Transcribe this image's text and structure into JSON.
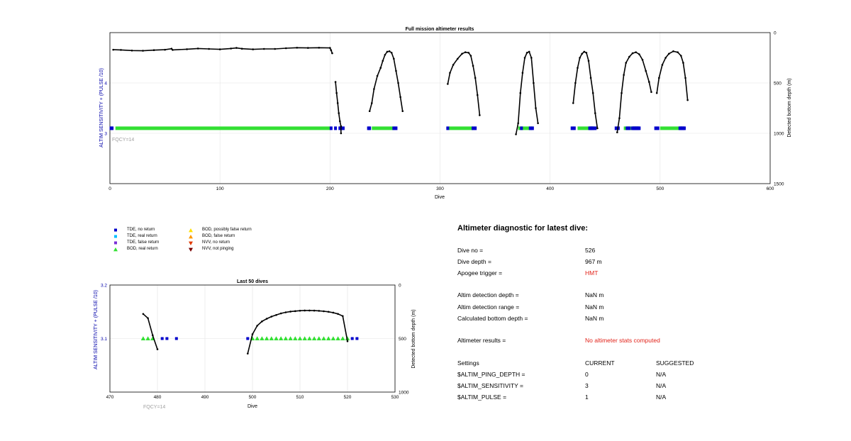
{
  "charts_meta": {
    "colors": {
      "line": "#000000",
      "tde_no_return": "#0000cc",
      "tde_real_return": "#00c0ff",
      "tde_false_return": "#7a2fd6",
      "bod_real_return": "#33e033",
      "bod_possibly_false": "#ffe000",
      "bod_false_return": "#ff9900",
      "nvv_no_return": "#e23a00",
      "nvv_not_pinging": "#7a0000",
      "left_axis": "#0000aa",
      "fqcy": "#a0a0a0"
    }
  },
  "chart_data": [
    {
      "type": "line",
      "title": "Full mission altimeter results",
      "xlabel": "Dive",
      "ylabel_left": "ALTIM SENSITIVITY + (PULSE /10)",
      "ylabel_right": "Detected bottom depth (m)",
      "xlim": [
        0,
        600
      ],
      "ylim_left": [
        2,
        5
      ],
      "ylim_right": [
        0,
        1500
      ],
      "right_axis_reversed": true,
      "grid": true,
      "x_ticks": [
        "0",
        "100",
        "200",
        "300",
        "400",
        "500",
        "600"
      ],
      "y_left_ticks": [
        "3",
        "4"
      ],
      "y_right_ticks": [
        "0",
        "500",
        "1000",
        "1500"
      ],
      "annotation": "FQCY=14",
      "series": [
        {
          "type": "line",
          "points": [
            [
              3,
              170
            ],
            [
              10,
              172
            ],
            [
              20,
              178
            ],
            [
              30,
              180
            ],
            [
              40,
              174
            ],
            [
              50,
              170
            ],
            [
              56,
              160
            ],
            [
              57,
              172
            ],
            [
              70,
              165
            ],
            [
              80,
              158
            ],
            [
              90,
              162
            ],
            [
              100,
              166
            ],
            [
              110,
              158
            ],
            [
              115,
              152
            ],
            [
              120,
              160
            ],
            [
              130,
              166
            ],
            [
              140,
              162
            ],
            [
              150,
              162
            ],
            [
              160,
              155
            ],
            [
              170,
              150
            ],
            [
              180,
              152
            ],
            [
              190,
              150
            ],
            [
              200,
              152
            ],
            [
              201,
              175
            ],
            [
              202,
              205
            ]
          ]
        },
        {
          "type": "line",
          "points": [
            [
              205,
              490
            ],
            [
              206,
              600
            ],
            [
              207,
              700
            ],
            [
              208,
              800
            ],
            [
              209,
              880
            ],
            [
              210,
              930
            ],
            [
              210,
              1000
            ]
          ]
        },
        {
          "type": "line",
          "points": [
            [
              236,
              780
            ],
            [
              238,
              700
            ],
            [
              240,
              560
            ],
            [
              243,
              430
            ],
            [
              246,
              350
            ],
            [
              248,
              280
            ],
            [
              250,
              220
            ],
            [
              252,
              190
            ],
            [
              254,
              185
            ],
            [
              256,
              200
            ],
            [
              258,
              260
            ],
            [
              260,
              380
            ],
            [
              262,
              500
            ],
            [
              264,
              640
            ],
            [
              266,
              780
            ]
          ]
        },
        {
          "type": "line",
          "points": [
            [
              307,
              510
            ],
            [
              309,
              400
            ],
            [
              312,
              320
            ],
            [
              316,
              260
            ],
            [
              320,
              210
            ],
            [
              323,
              195
            ],
            [
              326,
              200
            ],
            [
              328,
              230
            ],
            [
              330,
              330
            ],
            [
              332,
              450
            ],
            [
              334,
              620
            ],
            [
              336,
              820
            ]
          ]
        },
        {
          "type": "line",
          "points": [
            [
              369,
              1010
            ],
            [
              371,
              900
            ],
            [
              373,
              600
            ],
            [
              375,
              400
            ],
            [
              377,
              250
            ],
            [
              379,
              200
            ],
            [
              381,
              190
            ],
            [
              383,
              250
            ],
            [
              385,
              500
            ],
            [
              387,
              750
            ],
            [
              389,
              900
            ]
          ]
        },
        {
          "type": "line",
          "points": [
            [
              421,
              700
            ],
            [
              423,
              500
            ],
            [
              425,
              350
            ],
            [
              427,
              250
            ],
            [
              429,
              210
            ],
            [
              431,
              190
            ],
            [
              433,
              200
            ],
            [
              435,
              280
            ],
            [
              437,
              450
            ],
            [
              439,
              600
            ],
            [
              441,
              800
            ],
            [
              443,
              950
            ]
          ]
        },
        {
          "type": "line",
          "points": [
            [
              461,
              990
            ],
            [
              463,
              850
            ],
            [
              465,
              600
            ],
            [
              467,
              420
            ],
            [
              469,
              300
            ],
            [
              472,
              240
            ],
            [
              475,
              205
            ],
            [
              478,
              195
            ],
            [
              481,
              215
            ],
            [
              484,
              270
            ],
            [
              487,
              380
            ],
            [
              490,
              490
            ],
            [
              492,
              590
            ]
          ]
        },
        {
          "type": "line",
          "points": [
            [
              497,
              600
            ],
            [
              499,
              450
            ],
            [
              502,
              320
            ],
            [
              505,
              250
            ],
            [
              508,
              210
            ],
            [
              512,
              185
            ],
            [
              516,
              195
            ],
            [
              519,
              230
            ],
            [
              521,
              300
            ],
            [
              523,
              450
            ],
            [
              525,
              670
            ]
          ]
        }
      ],
      "markers": [
        {
          "type": "bar_segment",
          "class": "bod_real_return",
          "from": 5,
          "to": 200,
          "value": 3.1
        },
        {
          "type": "bar_segment",
          "class": "bod_real_return",
          "from": 238,
          "to": 258,
          "value": 3.1
        },
        {
          "type": "bar_segment",
          "class": "bod_real_return",
          "from": 308,
          "to": 330,
          "value": 3.1
        },
        {
          "type": "bar_segment",
          "class": "bod_real_return",
          "from": 371,
          "to": 384,
          "value": 3.1
        },
        {
          "type": "bar_segment",
          "class": "bod_real_return",
          "from": 425,
          "to": 440,
          "value": 3.1
        },
        {
          "type": "bar_segment",
          "class": "bod_real_return",
          "from": 467,
          "to": 481,
          "value": 3.1
        },
        {
          "type": "bar_segment",
          "class": "bod_real_return",
          "from": 500,
          "to": 520,
          "value": 3.1
        },
        {
          "type": "points",
          "class": "tde_no_return",
          "x": [
            1,
            2,
            201,
            205,
            209,
            210,
            212,
            235,
            236,
            258,
            260,
            307,
            330,
            332,
            374,
            382,
            384,
            420,
            422,
            436,
            437,
            438,
            439,
            441,
            460,
            462,
            470,
            472,
            475,
            476,
            477,
            478,
            479,
            480,
            481,
            496,
            498,
            518,
            519,
            520,
            521,
            522
          ],
          "value": 3.1
        }
      ]
    },
    {
      "type": "line",
      "title": "Last 50 dives",
      "xlabel": "Dive",
      "ylabel_left": "ALTIM SENSITIVITY + (PULSE /10)",
      "ylabel_right": "Detected bottom depth (m)",
      "xlim": [
        470,
        530
      ],
      "ylim_left": [
        3,
        3.2
      ],
      "ylim_right": [
        0,
        1000
      ],
      "right_axis_reversed": true,
      "grid": true,
      "x_ticks": [
        "470",
        "480",
        "490",
        "500",
        "510",
        "520",
        "530"
      ],
      "y_left_ticks": [
        "3.1",
        "3.2"
      ],
      "y_right_ticks": [
        "0",
        "500",
        "1000"
      ],
      "annotation": "FQCY=14",
      "series": [
        {
          "type": "line",
          "points": [
            [
              477,
              270
            ],
            [
              478,
              310
            ],
            [
              479,
              470
            ],
            [
              480,
              600
            ]
          ]
        },
        {
          "type": "line",
          "points": [
            [
              499,
              640
            ],
            [
              500,
              460
            ],
            [
              501,
              380
            ],
            [
              502,
              340
            ],
            [
              503,
              315
            ],
            [
              504,
              295
            ],
            [
              505,
              280
            ],
            [
              506,
              265
            ],
            [
              507,
              255
            ],
            [
              508,
              248
            ],
            [
              509,
              244
            ],
            [
              510,
              240
            ],
            [
              511,
              238
            ],
            [
              512,
              238
            ],
            [
              513,
              239
            ],
            [
              514,
              241
            ],
            [
              515,
              245
            ],
            [
              516,
              250
            ],
            [
              517,
              258
            ],
            [
              518,
              270
            ],
            [
              519,
              290
            ],
            [
              520,
              525
            ]
          ]
        }
      ],
      "bod_real_return": {
        "x": [
          477,
          478,
          479,
          500,
          501,
          502,
          503,
          504,
          505,
          506,
          507,
          508,
          509,
          510,
          511,
          512,
          513,
          514,
          515,
          516,
          517,
          518,
          519,
          520
        ],
        "value": 3.1
      },
      "tde_no_return": {
        "x": [
          481,
          482,
          484,
          499,
          521,
          522
        ],
        "value": 3.1
      }
    }
  ],
  "legend": {
    "items": [
      {
        "label": "TDE, no return",
        "symbol": "square",
        "color_key": "tde_no_return"
      },
      {
        "label": "TDE, real return",
        "symbol": "square",
        "color_key": "tde_real_return"
      },
      {
        "label": "TDE, false return",
        "symbol": "square",
        "color_key": "tde_false_return"
      },
      {
        "label": "BOD, real return",
        "symbol": "triangle-up",
        "color_key": "bod_real_return"
      },
      {
        "label": "BOD, possibly false return",
        "symbol": "triangle-up",
        "color_key": "bod_possibly_false"
      },
      {
        "label": "BOD, false return",
        "symbol": "triangle-up",
        "color_key": "bod_false_return"
      },
      {
        "label": "NVV, no return",
        "symbol": "triangle-down",
        "color_key": "nvv_no_return"
      },
      {
        "label": "NVV, not pinging",
        "symbol": "triangle-down",
        "color_key": "nvv_not_pinging"
      }
    ]
  },
  "diagnostic": {
    "title": "Altimeter diagnostic for latest dive:",
    "dive_no_label": "Dive no =",
    "dive_no_value": "526",
    "dive_depth_label": "Dive depth =",
    "dive_depth_value": "967 m",
    "apogee_label": "Apogee trigger =",
    "apogee_value": "HMT",
    "altim_detection_depth_label": "Altim detection depth =",
    "altim_detection_depth_value": "NaN m",
    "altim_detection_range_label": "Altim detection range =",
    "altim_detection_range_value": "NaN m",
    "calc_bottom_depth_label": "Calculated bottom depth =",
    "calc_bottom_depth_value": "NaN m",
    "results_label": "Altimeter results =",
    "results_value": "No altimeter stats computed",
    "settings_header": "Settings",
    "current_header": "CURRENT",
    "suggested_header": "SUGGESTED",
    "settings": [
      {
        "name": "$ALTIM_PING_DEPTH =",
        "current": "0",
        "suggested": "N/A"
      },
      {
        "name": "$ALTIM_SENSITIVITY =",
        "current": "3",
        "suggested": "N/A"
      },
      {
        "name": "$ALTIM_PULSE =",
        "current": "1",
        "suggested": "N/A"
      }
    ]
  }
}
